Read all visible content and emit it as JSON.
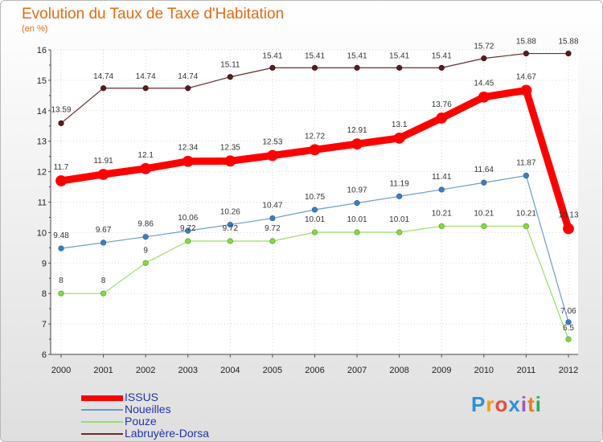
{
  "chart_data": {
    "type": "line",
    "title": "Evolution du Taux de Taxe d'Habitation",
    "subtitle": "(en %)",
    "x": [
      "2000",
      "2001",
      "2002",
      "2003",
      "2004",
      "2005",
      "2006",
      "2007",
      "2008",
      "2009",
      "2010",
      "2011",
      "2012"
    ],
    "ylim": [
      6,
      16
    ],
    "yticks": [
      6,
      7,
      8,
      9,
      10,
      11,
      12,
      13,
      14,
      15,
      16
    ],
    "grid": true,
    "legend_position": "bottom-left",
    "series": [
      {
        "name": "ISSUS",
        "color": "#ff0000",
        "values": [
          11.7,
          11.91,
          12.1,
          12.34,
          12.35,
          12.53,
          12.72,
          12.91,
          13.1,
          13.76,
          14.45,
          14.67,
          10.13
        ],
        "labels": [
          "11.7",
          "11.91",
          "12.1",
          "12.34",
          "12.35",
          "12.53",
          "12.72",
          "12.91",
          "13.1",
          "13.76",
          "14.45",
          "14.67",
          "10.13"
        ]
      },
      {
        "name": "Noueilles",
        "color": "#6a9ccf",
        "values": [
          9.48,
          9.67,
          9.86,
          10.06,
          10.26,
          10.47,
          10.75,
          10.97,
          11.19,
          11.41,
          11.64,
          11.87,
          7.06
        ],
        "labels": [
          "9.48",
          "9.67",
          "9.86",
          "10.06",
          "10.26",
          "10.47",
          "10.75",
          "10.97",
          "11.19",
          "11.41",
          "11.64",
          "11.87",
          "7.06"
        ]
      },
      {
        "name": "Pouze",
        "color": "#99dd66",
        "values": [
          8,
          8,
          9,
          9.72,
          9.72,
          9.72,
          10.01,
          10.01,
          10.01,
          10.21,
          10.21,
          10.21,
          6.5
        ],
        "labels": [
          "8",
          "8",
          "9",
          "9.72",
          "9.72",
          "9.72",
          "10.01",
          "10.01",
          "10.01",
          "10.21",
          "10.21",
          "10.21",
          "6.5"
        ]
      },
      {
        "name": "Labruyère-Dorsa",
        "color": "#6e2a2a",
        "values": [
          13.59,
          14.74,
          14.74,
          14.74,
          15.11,
          15.41,
          15.41,
          15.41,
          15.41,
          15.41,
          15.72,
          15.88,
          15.88
        ],
        "labels": [
          "13.59",
          "14.74",
          "14.74",
          "14.74",
          "15.11",
          "15.41",
          "15.41",
          "15.41",
          "15.41",
          "15.41",
          "15.72",
          "15.88",
          "15.88"
        ]
      }
    ]
  },
  "brand": {
    "letters": [
      "P",
      "r",
      "o",
      "x",
      "i",
      "t",
      "i"
    ],
    "colors": [
      "#2f8fd6",
      "#f39c12",
      "#e74c3c",
      "#2f8fd6",
      "#9b59b6",
      "#e67e22",
      "#27ae60"
    ]
  }
}
